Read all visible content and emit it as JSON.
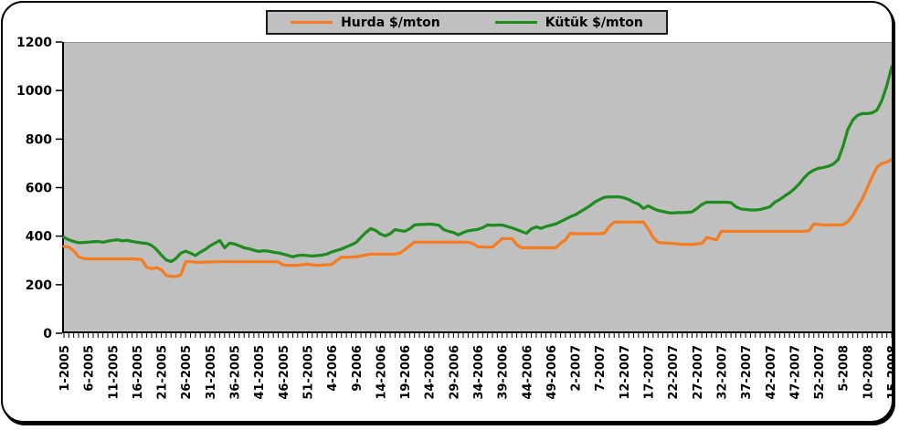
{
  "window": {
    "background": "#ffffff",
    "border_color": "#000000"
  },
  "chart_data": {
    "type": "line",
    "title": "",
    "xlabel": "",
    "ylabel": "",
    "x_unit": "week-year",
    "x_label_every": 5,
    "x_tick_labels": [
      "1-2005",
      "6-2005",
      "11-2005",
      "16-2005",
      "21-2005",
      "26-2005",
      "31-2005",
      "36-2005",
      "41-2005",
      "46-2005",
      "51-2005",
      "4-2006",
      "9-2006",
      "14-2006",
      "19-2006",
      "24-2006",
      "29-2006",
      "34-2006",
      "39-2006",
      "44-2006",
      "49-2006",
      "2-2007",
      "7-2007",
      "12-2007",
      "17-2007",
      "22-2007",
      "27-2007",
      "32-2007",
      "37-2007",
      "42-2007",
      "47-2007",
      "52-2007",
      "5-2008",
      "10-2008",
      "15-2008"
    ],
    "ylim": [
      0,
      1200
    ],
    "yticks": [
      0,
      200,
      400,
      600,
      800,
      1000,
      1200
    ],
    "grid": false,
    "plot_background": "#c0c0c0",
    "legend_position": "top-center",
    "axis_color": "#000000",
    "series": [
      {
        "name": "Hurda $/mton",
        "color": "#f57c20",
        "values": [
          358,
          355,
          340,
          315,
          308,
          306,
          306,
          306,
          306,
          306,
          306,
          306,
          306,
          306,
          306,
          305,
          303,
          272,
          266,
          270,
          262,
          238,
          234,
          234,
          240,
          295,
          295,
          293,
          292,
          293,
          294,
          294,
          295,
          295,
          295,
          295,
          295,
          295,
          295,
          295,
          295,
          295,
          295,
          295,
          294,
          281,
          280,
          280,
          280,
          282,
          285,
          281,
          280,
          281,
          282,
          283,
          300,
          313,
          313,
          314,
          315,
          318,
          322,
          326,
          326,
          326,
          326,
          326,
          326,
          330,
          345,
          360,
          375,
          375,
          375,
          375,
          375,
          375,
          375,
          375,
          375,
          375,
          375,
          375,
          370,
          356,
          355,
          355,
          355,
          372,
          390,
          390,
          390,
          365,
          352,
          352,
          352,
          352,
          352,
          352,
          352,
          352,
          371,
          385,
          412,
          410,
          410,
          410,
          410,
          410,
          410,
          412,
          440,
          458,
          458,
          458,
          458,
          458,
          458,
          458,
          430,
          395,
          375,
          372,
          371,
          370,
          368,
          366,
          366,
          366,
          368,
          370,
          394,
          390,
          384,
          420,
          420,
          420,
          420,
          420,
          420,
          420,
          420,
          420,
          420,
          420,
          420,
          420,
          420,
          420,
          420,
          420,
          420,
          422,
          450,
          448,
          446,
          446,
          446,
          446,
          447,
          460,
          484,
          520,
          555,
          600,
          645,
          685,
          700,
          705,
          716
        ]
      },
      {
        "name": "Kütük $/mton",
        "color": "#1e8c1e",
        "values": [
          395,
          385,
          378,
          373,
          374,
          375,
          377,
          378,
          375,
          379,
          383,
          385,
          381,
          383,
          378,
          375,
          372,
          370,
          362,
          345,
          322,
          302,
          295,
          308,
          330,
          338,
          330,
          320,
          334,
          345,
          360,
          371,
          382,
          352,
          371,
          368,
          360,
          352,
          348,
          342,
          337,
          340,
          338,
          334,
          331,
          326,
          321,
          315,
          320,
          322,
          320,
          318,
          320,
          322,
          326,
          335,
          341,
          347,
          356,
          364,
          374,
          395,
          415,
          431,
          424,
          409,
          401,
          410,
          427,
          423,
          420,
          430,
          446,
          448,
          448,
          450,
          448,
          445,
          427,
          420,
          415,
          405,
          415,
          422,
          425,
          428,
          435,
          446,
          445,
          446,
          446,
          440,
          434,
          427,
          419,
          412,
          430,
          438,
          432,
          440,
          445,
          450,
          460,
          470,
          480,
          488,
          500,
          512,
          525,
          540,
          551,
          560,
          562,
          562,
          562,
          558,
          551,
          540,
          532,
          514,
          525,
          514,
          506,
          502,
          497,
          495,
          497,
          497,
          498,
          500,
          514,
          530,
          540,
          540,
          540,
          540,
          540,
          538,
          521,
          512,
          510,
          508,
          508,
          510,
          515,
          521,
          540,
          551,
          565,
          578,
          595,
          615,
          640,
          660,
          672,
          680,
          683,
          688,
          697,
          715,
          770,
          840,
          878,
          898,
          905,
          905,
          908,
          920,
          960,
          1020,
          1098
        ]
      }
    ]
  }
}
